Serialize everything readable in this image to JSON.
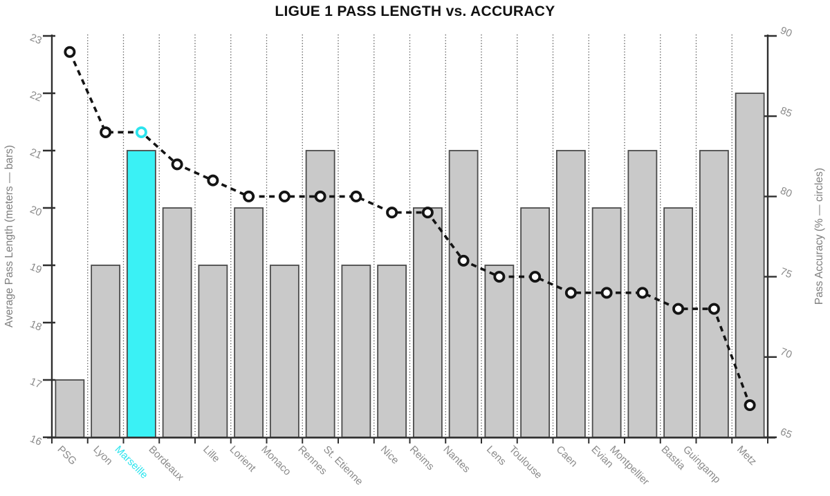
{
  "chart_data": {
    "type": "bar+line combo",
    "title": "LIGUE 1 PASS LENGTH vs. ACCURACY",
    "categories": [
      "PSG",
      "Lyon",
      "Marseille",
      "Bordeaux",
      "Lille",
      "Lorient",
      "Monaco",
      "Rennes",
      "St. Etienne",
      "Nice",
      "Reims",
      "Nantes",
      "Lens",
      "Toulouse",
      "Caen",
      "Evian",
      "Montpellier",
      "Bastia",
      "Guingamp",
      "Metz"
    ],
    "series": [
      {
        "name": "Average Pass Length",
        "type": "bar",
        "axis": "left",
        "values": [
          17,
          19,
          21,
          20,
          19,
          20,
          19,
          21,
          19,
          19,
          20,
          21,
          19,
          20,
          21,
          20,
          21,
          20,
          21,
          22
        ]
      },
      {
        "name": "Pass Accuracy",
        "type": "line",
        "axis": "right",
        "values": [
          89,
          84,
          84,
          82,
          81,
          80,
          80,
          80,
          80,
          79,
          79,
          76,
          75,
          75,
          74,
          74,
          74,
          73,
          73,
          67
        ]
      }
    ],
    "left_axis": {
      "label": "Average Pass Length (meters — bars)",
      "min": 16,
      "max": 23,
      "ticks": [
        16,
        17,
        18,
        19,
        20,
        21,
        22,
        23
      ]
    },
    "right_axis": {
      "label": "Pass Accuracy (% — circles)",
      "min": 65,
      "max": 90,
      "ticks": [
        65,
        70,
        75,
        80,
        85,
        90
      ]
    },
    "highlight": {
      "category": "Marseille",
      "index": 2,
      "bar_color": "#3af1f5",
      "accent_color": "#2ce4ee"
    },
    "legend_position": "none",
    "grid": "vertical dotted between categories",
    "colors": {
      "bar_fill": "#c9c9c9",
      "bar_border": "#4a4a4a",
      "line": "#141414",
      "marker_fill": "#ffffff",
      "grid": "#4d4d4d",
      "axis": "#2e2e2e",
      "tick_label": "#8a8a8a",
      "title": "#111111"
    }
  }
}
